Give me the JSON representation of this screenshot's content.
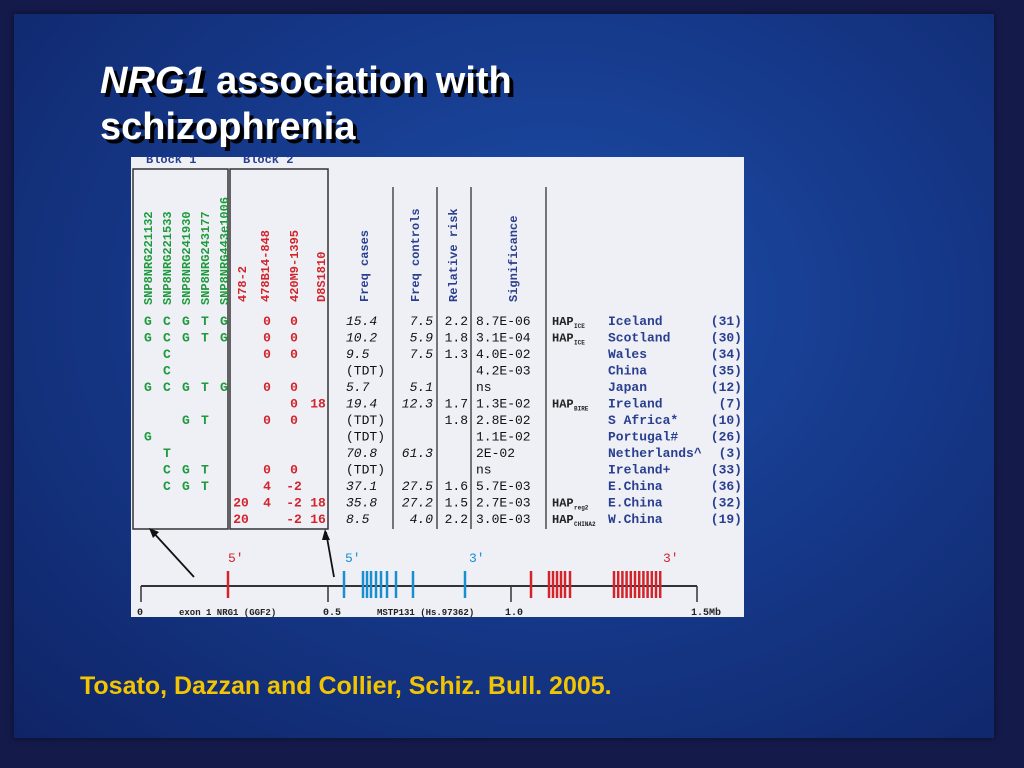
{
  "title": {
    "gene": "NRG1",
    "rest_line1": " association with",
    "line2": "schizophrenia"
  },
  "citation": "Tosato, Dazzan and Collier, Schiz. Bull. 2005.",
  "figure": {
    "block1_label": "Block 1",
    "block2_label": "Block 2",
    "block1_markers": [
      "SNP8NRG221132",
      "SNP8NRG221533",
      "SNP8NRG241930",
      "SNP8NRG243177",
      "SNP8NRG443e1006"
    ],
    "block2_markers": [
      "478-2",
      "478B14-848",
      "420M9-1395",
      "D8S1810"
    ],
    "stat_headers": [
      "Freq cases",
      "Freq controls",
      "Relative risk",
      "Significance"
    ],
    "rows": [
      {
        "b1": [
          "G",
          "C",
          "G",
          "T",
          "G"
        ],
        "b2": [
          "",
          "0",
          "0",
          ""
        ],
        "cases": "15.4",
        "controls": "7.5",
        "rr": "2.2",
        "sig": "8.7E-06",
        "hap": "HAP",
        "hapsub": "ICE",
        "pop": "Iceland",
        "ref": "(31)"
      },
      {
        "b1": [
          "G",
          "C",
          "G",
          "T",
          "G"
        ],
        "b2": [
          "",
          "0",
          "0",
          ""
        ],
        "cases": "10.2",
        "controls": "5.9",
        "rr": "1.8",
        "sig": "3.1E-04",
        "hap": "HAP",
        "hapsub": "ICE",
        "pop": "Scotland",
        "ref": "(30)"
      },
      {
        "b1": [
          "",
          "C",
          "",
          "",
          ""
        ],
        "b2": [
          "",
          "0",
          "0",
          ""
        ],
        "cases": "9.5",
        "controls": "7.5",
        "rr": "1.3",
        "sig": "4.0E-02",
        "hap": "",
        "hapsub": "",
        "pop": "Wales",
        "ref": "(34)"
      },
      {
        "b1": [
          "",
          "C",
          "",
          "",
          ""
        ],
        "b2": [
          "",
          "",
          "",
          ""
        ],
        "cases": "(TDT)",
        "controls": "",
        "rr": "",
        "sig": "4.2E-03",
        "hap": "",
        "hapsub": "",
        "pop": "China",
        "ref": "(35)"
      },
      {
        "b1": [
          "G",
          "C",
          "G",
          "T",
          "G"
        ],
        "b2": [
          "",
          "0",
          "0",
          ""
        ],
        "cases": "5.7",
        "controls": "5.1",
        "rr": "",
        "sig": "ns",
        "hap": "",
        "hapsub": "",
        "pop": "Japan",
        "ref": "(12)"
      },
      {
        "b1": [
          "",
          "",
          "",
          "",
          ""
        ],
        "b2": [
          "",
          "",
          "0",
          "18"
        ],
        "cases": "19.4",
        "controls": "12.3",
        "rr": "1.7",
        "sig": "1.3E-02",
        "hap": "HAP",
        "hapsub": "BIRE",
        "pop": "Ireland",
        "ref": "(7)"
      },
      {
        "b1": [
          "",
          "",
          "G",
          "T",
          ""
        ],
        "b2": [
          "",
          "0",
          "0",
          ""
        ],
        "cases": "(TDT)",
        "controls": "",
        "rr": "1.8",
        "sig": "2.8E-02",
        "hap": "",
        "hapsub": "",
        "pop": "S Africa*",
        "ref": "(10)"
      },
      {
        "b1": [
          "G",
          "",
          "",
          "",
          ""
        ],
        "b2": [
          "",
          "",
          "",
          ""
        ],
        "cases": "(TDT)",
        "controls": "",
        "rr": "",
        "sig": "1.1E-02",
        "hap": "",
        "hapsub": "",
        "pop": "Portugal#",
        "ref": "(26)"
      },
      {
        "b1": [
          "",
          "T",
          "",
          "",
          ""
        ],
        "b2": [
          "",
          "",
          "",
          ""
        ],
        "cases": "70.8",
        "controls": "61.3",
        "rr": "",
        "sig": "2E-02",
        "hap": "",
        "hapsub": "",
        "pop": "Netherlands^",
        "ref": "(3)"
      },
      {
        "b1": [
          "",
          "C",
          "G",
          "T",
          ""
        ],
        "b2": [
          "",
          "0",
          "0",
          ""
        ],
        "cases": "(TDT)",
        "controls": "",
        "rr": "",
        "sig": "ns",
        "hap": "",
        "hapsub": "",
        "pop": "Ireland+",
        "ref": "(33)"
      },
      {
        "b1": [
          "",
          "C",
          "G",
          "T",
          ""
        ],
        "b2": [
          "",
          "4",
          "-2",
          ""
        ],
        "cases": "37.1",
        "controls": "27.5",
        "rr": "1.6",
        "sig": "5.7E-03",
        "hap": "",
        "hapsub": "",
        "pop": "E.China",
        "ref": "(36)"
      },
      {
        "b1": [
          "",
          "",
          "",
          "",
          ""
        ],
        "b2": [
          "20",
          "4",
          "-2",
          "18"
        ],
        "cases": "35.8",
        "controls": "27.2",
        "rr": "1.5",
        "sig": "2.7E-03",
        "hap": "HAP",
        "hapsub": "reg2",
        "pop": "E.China",
        "ref": "(32)"
      },
      {
        "b1": [
          "",
          "",
          "",
          "",
          ""
        ],
        "b2": [
          "20",
          "",
          "-2",
          "16"
        ],
        "cases": "8.5",
        "controls": "4.0",
        "rr": "2.2",
        "sig": "3.0E-03",
        "hap": "HAP",
        "hapsub": "CHINA2",
        "pop": "W.China",
        "ref": "(19)"
      }
    ],
    "gene_labels": [
      {
        "text": "5'",
        "color": "red"
      },
      {
        "text": "5'",
        "color": "blue"
      },
      {
        "text": "3'",
        "color": "blue"
      },
      {
        "text": "3'",
        "color": "red"
      }
    ],
    "axis_labels": [
      "0",
      "exon 1 NRG1 (GGF2)",
      "0.5",
      "MSTP131 (Hs.97362)",
      "1.0",
      "1.5Mb"
    ]
  },
  "colors": {
    "green": "#1f9a3c",
    "red": "#d2242a",
    "blue": "#1a8fd0",
    "navy": "#2a3f8f",
    "citation": "#f2c500"
  }
}
